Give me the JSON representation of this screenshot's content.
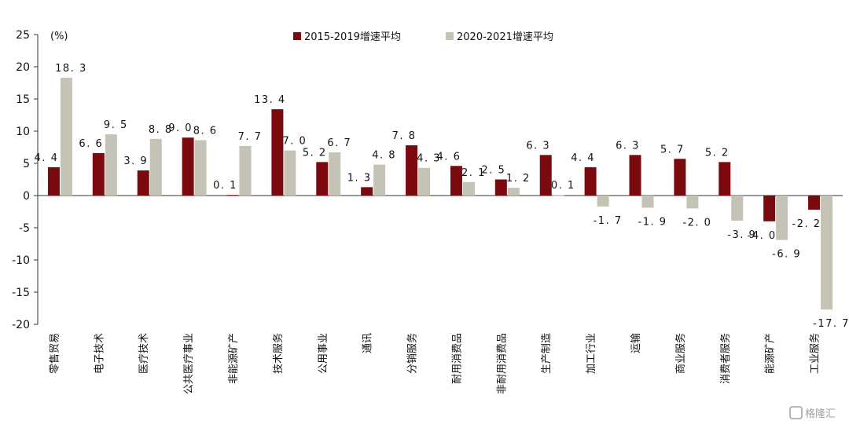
{
  "chart_data": {
    "type": "bar",
    "unit_label": "(%)",
    "categories": [
      "零售贸易",
      "电子技术",
      "医疗技术",
      "公共医疗事业",
      "非能源矿产",
      "技术服务",
      "公用事业",
      "通讯",
      "分销服务",
      "耐用消费品",
      "非耐用消费品",
      "生产制造",
      "加工行业",
      "运输",
      "商业服务",
      "消费者服务",
      "能源矿产",
      "工业服务"
    ],
    "series": [
      {
        "name": "2015-2019增速平均",
        "color": "#7b0a0f",
        "values": [
          4.4,
          6.6,
          3.9,
          9.0,
          0.1,
          13.4,
          5.2,
          1.3,
          7.8,
          4.6,
          2.5,
          6.3,
          4.4,
          6.3,
          5.7,
          5.2,
          -4.0,
          -2.2
        ],
        "labels": [
          "4. 4",
          "6. 6",
          "3. 9",
          "9. 0",
          "0. 1",
          "13. 4",
          "5. 2",
          "1. 3",
          "7. 8",
          "4. 6",
          "2. 5",
          "6. 3",
          "4. 4",
          "6. 3",
          "5. 7",
          "5. 2",
          "-4. 0",
          "-2. 2"
        ]
      },
      {
        "name": "2020-2021增速平均",
        "color": "#c5c2b6",
        "values": [
          18.3,
          9.5,
          8.8,
          8.6,
          7.7,
          7.0,
          6.7,
          4.8,
          4.3,
          2.1,
          1.2,
          0.1,
          -1.7,
          -1.9,
          -2.0,
          -3.9,
          -6.9,
          -17.7
        ],
        "labels": [
          "18. 3",
          "9. 5",
          "8. 8",
          "8. 6",
          "7. 7",
          "7. 0",
          "6. 7",
          "4. 8",
          "4. 3",
          "2. 1",
          "1. 2",
          "0. 1",
          "-1. 7",
          "-1. 9",
          "-2. 0",
          "-3. 9",
          "-6. 9",
          "-17. 7"
        ]
      }
    ],
    "ylim": [
      -20,
      25
    ],
    "yticks": [
      25,
      20,
      15,
      10,
      5,
      0,
      -5,
      -10,
      -15,
      -20
    ],
    "legend_position": "top"
  },
  "watermark": {
    "text": "格隆汇"
  }
}
